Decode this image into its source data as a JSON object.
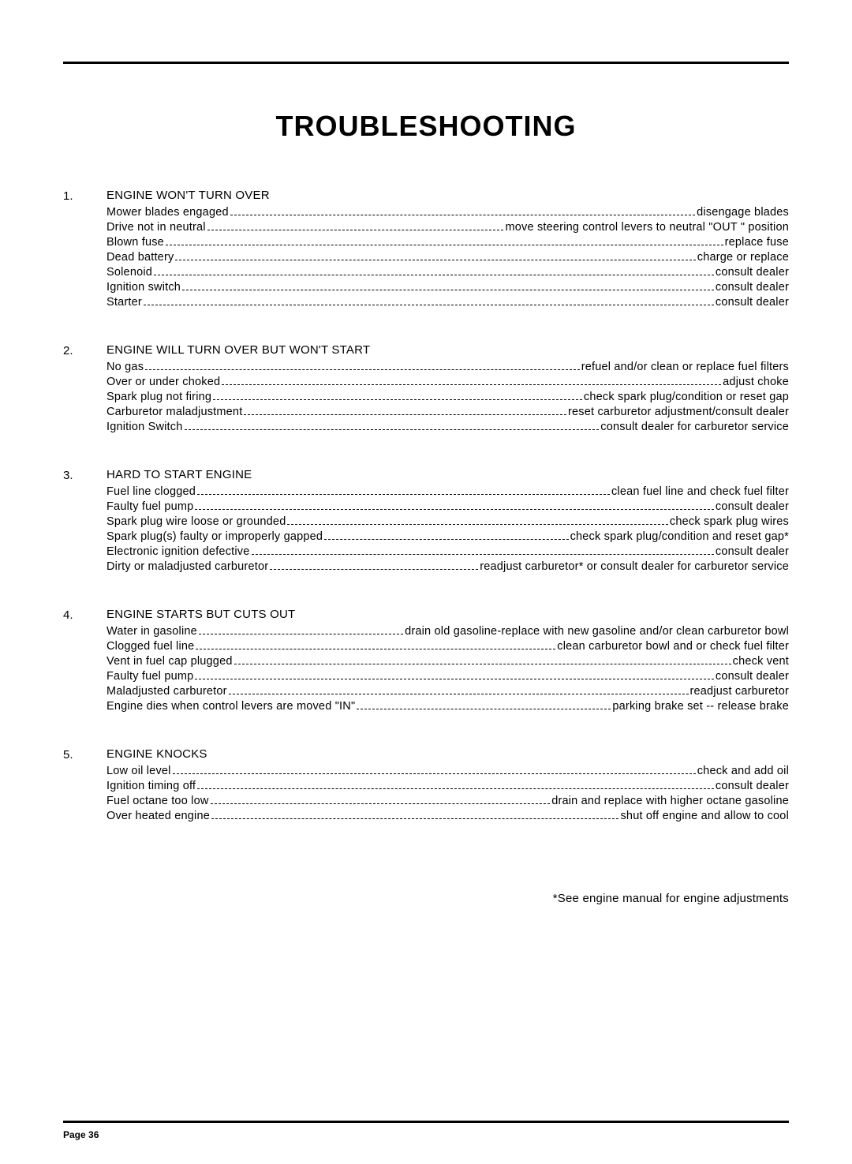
{
  "title": "TROUBLESHOOTING",
  "footnote": "*See engine manual for engine adjustments",
  "pageLabel": "Page 36",
  "colors": {
    "text": "#000000",
    "background": "#ffffff",
    "rule": "#000000"
  },
  "typography": {
    "title_fontsize": 36,
    "heading_fontsize": 15,
    "body_fontsize": 14.5,
    "footnote_fontsize": 15,
    "pagenum_fontsize": 12,
    "font_family": "Arial"
  },
  "sections": [
    {
      "num": "1.",
      "heading": "ENGINE WON'T TURN OVER",
      "items": [
        {
          "cause": "Mower blades engaged",
          "remedy": "disengage blades"
        },
        {
          "cause": "Drive not in neutral",
          "remedy": "move steering control levers to neutral \"OUT \" position"
        },
        {
          "cause": "Blown fuse",
          "remedy": "replace fuse"
        },
        {
          "cause": "Dead battery",
          "remedy": "charge or replace"
        },
        {
          "cause": "Solenoid",
          "remedy": "consult dealer"
        },
        {
          "cause": "Ignition switch",
          "remedy": "consult dealer"
        },
        {
          "cause": "Starter",
          "remedy": "consult dealer"
        }
      ]
    },
    {
      "num": "2.",
      "heading": "ENGINE WILL TURN OVER BUT WON'T START",
      "items": [
        {
          "cause": "No gas",
          "remedy": "refuel and/or clean or replace fuel filters"
        },
        {
          "cause": "Over or under choked",
          "remedy": "adjust choke"
        },
        {
          "cause": "Spark plug not firing",
          "remedy": "check spark plug/condition or reset gap"
        },
        {
          "cause": "Carburetor maladjustment",
          "remedy": "reset carburetor adjustment/consult dealer"
        },
        {
          "cause": "Ignition Switch",
          "remedy": "consult  dealer for carburetor service"
        }
      ]
    },
    {
      "num": "3.",
      "heading": "HARD TO START ENGINE",
      "items": [
        {
          "cause": "Fuel line clogged",
          "remedy": "clean fuel line and check fuel filter"
        },
        {
          "cause": "Faulty fuel pump",
          "remedy": "consult dealer"
        },
        {
          "cause": "Spark plug wire loose or grounded",
          "remedy": "check spark plug wires"
        },
        {
          "cause": "Spark plug(s) faulty or improperly gapped",
          "remedy": "check spark plug/condition and  reset gap*"
        },
        {
          "cause": "Electronic ignition defective",
          "remedy": "consult dealer"
        },
        {
          "cause": "Dirty or maladjusted carburetor",
          "remedy": "readjust carburetor* or consult dealer for carburetor service"
        }
      ]
    },
    {
      "num": "4.",
      "heading": "ENGINE STARTS BUT CUTS OUT",
      "items": [
        {
          "cause": "Water in gasoline",
          "remedy": "drain old gasoline-replace with new gasoline and/or clean carburetor bowl"
        },
        {
          "cause": "Clogged fuel line",
          "remedy": "clean carburetor bowl and or check fuel filter"
        },
        {
          "cause": "Vent in fuel cap plugged",
          "remedy": "check vent"
        },
        {
          "cause": "Faulty fuel pump",
          "remedy": "consult dealer"
        },
        {
          "cause": "Maladjusted carburetor",
          "remedy": "readjust carburetor"
        },
        {
          "cause": "Engine dies when control levers are moved \"IN\"",
          "remedy": "parking brake set -- release brake"
        }
      ]
    },
    {
      "num": "5.",
      "heading": "ENGINE KNOCKS",
      "items": [
        {
          "cause": "Low oil level",
          "remedy": "check and add oil"
        },
        {
          "cause": "Ignition timing off",
          "remedy": "consult dealer"
        },
        {
          "cause": "Fuel octane too low",
          "remedy": "drain and replace with higher octane gasoline"
        },
        {
          "cause": "Over heated engine",
          "remedy": "shut off engine and allow to cool"
        }
      ]
    }
  ]
}
